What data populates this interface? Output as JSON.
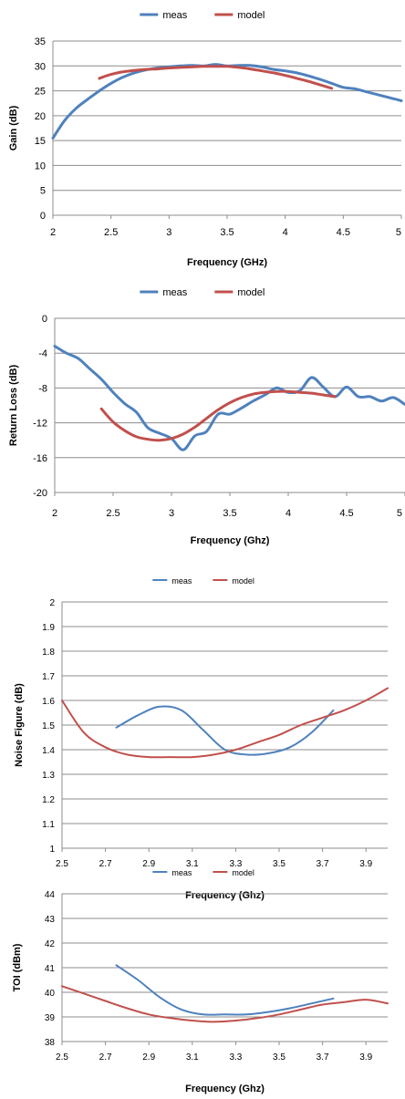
{
  "chart_data": [
    {
      "type": "line",
      "xlabel": "Frequency (GHz)",
      "ylabel": "Gain (dB)",
      "xlim": [
        2,
        5
      ],
      "ylim": [
        0,
        35
      ],
      "xticks": [
        "2",
        "2.5",
        "3",
        "3.5",
        "4",
        "4.5",
        "5"
      ],
      "yticks": [
        "0",
        "5",
        "10",
        "15",
        "20",
        "25",
        "30",
        "35"
      ],
      "grid": "horizontal",
      "legend": "top-center",
      "series": [
        {
          "name": "meas",
          "color": "#4F81BD",
          "x": [
            2.0,
            2.1,
            2.2,
            2.3,
            2.4,
            2.5,
            2.6,
            2.7,
            2.8,
            2.9,
            3.0,
            3.1,
            3.2,
            3.3,
            3.4,
            3.5,
            3.6,
            3.7,
            3.8,
            3.9,
            4.0,
            4.1,
            4.2,
            4.3,
            4.4,
            4.5,
            4.6,
            4.7,
            4.8,
            4.9,
            5.0
          ],
          "y": [
            15.5,
            19,
            21.5,
            23.3,
            25,
            26.5,
            27.7,
            28.6,
            29.2,
            29.6,
            29.8,
            30.0,
            30.1,
            30.0,
            30.3,
            30.0,
            30.1,
            30.1,
            29.8,
            29.3,
            29.0,
            28.6,
            28.0,
            27.3,
            26.5,
            25.7,
            25.4,
            24.8,
            24.2,
            23.6,
            23.0
          ]
        },
        {
          "name": "model",
          "color": "#C0504D",
          "x": [
            2.4,
            2.5,
            2.6,
            2.7,
            2.8,
            2.9,
            3.0,
            3.1,
            3.2,
            3.3,
            3.4,
            3.5,
            3.6,
            3.7,
            3.8,
            3.9,
            4.0,
            4.1,
            4.2,
            4.3,
            4.4
          ],
          "y": [
            27.5,
            28.3,
            28.8,
            29.1,
            29.3,
            29.4,
            29.6,
            29.7,
            29.8,
            29.9,
            29.9,
            29.9,
            29.7,
            29.4,
            29.0,
            28.6,
            28.1,
            27.5,
            26.9,
            26.2,
            25.5
          ]
        }
      ]
    },
    {
      "type": "line",
      "xlabel": "Frequency (Ghz)",
      "ylabel": "Return Loss (dB)",
      "xlim": [
        2,
        5
      ],
      "ylim": [
        -20,
        0
      ],
      "xticks": [
        "2",
        "2.5",
        "3",
        "3.5",
        "4",
        "4.5",
        "5"
      ],
      "yticks": [
        "-20",
        "-16",
        "-12",
        "-8",
        "-4",
        "0"
      ],
      "grid": "horizontal",
      "legend": "top-center",
      "series": [
        {
          "name": "meas",
          "color": "#4F81BD",
          "x": [
            2.0,
            2.1,
            2.2,
            2.3,
            2.4,
            2.5,
            2.6,
            2.7,
            2.8,
            2.9,
            3.0,
            3.1,
            3.2,
            3.3,
            3.4,
            3.5,
            3.6,
            3.7,
            3.8,
            3.9,
            4.0,
            4.1,
            4.2,
            4.3,
            4.4,
            4.5,
            4.6,
            4.7,
            4.8,
            4.9,
            5.0
          ],
          "y": [
            -3.2,
            -4.0,
            -4.6,
            -5.8,
            -7.0,
            -8.5,
            -9.8,
            -10.8,
            -12.6,
            -13.2,
            -13.8,
            -15.1,
            -13.5,
            -13.0,
            -11.0,
            -11.0,
            -10.3,
            -9.5,
            -8.8,
            -8.0,
            -8.5,
            -8.3,
            -6.8,
            -7.9,
            -9.0,
            -7.9,
            -9.0,
            -9.0,
            -9.5,
            -9.1,
            -9.9
          ]
        },
        {
          "name": "model",
          "color": "#C0504D",
          "x": [
            2.4,
            2.5,
            2.6,
            2.7,
            2.8,
            2.9,
            3.0,
            3.1,
            3.2,
            3.3,
            3.4,
            3.5,
            3.6,
            3.7,
            3.8,
            3.9,
            4.0,
            4.1,
            4.2,
            4.3,
            4.4
          ],
          "y": [
            -10.4,
            -11.9,
            -12.9,
            -13.6,
            -13.9,
            -14.0,
            -13.8,
            -13.3,
            -12.5,
            -11.5,
            -10.5,
            -9.7,
            -9.1,
            -8.7,
            -8.5,
            -8.4,
            -8.4,
            -8.5,
            -8.6,
            -8.8,
            -9.0
          ]
        }
      ]
    },
    {
      "type": "line",
      "xlabel": "Frequency (Ghz)",
      "ylabel": "Noise Figure (dB)",
      "xlim": [
        2.5,
        4.0
      ],
      "ylim": [
        1,
        2
      ],
      "xticks": [
        "2.5",
        "2.7",
        "2.9",
        "3.1",
        "3.3",
        "3.5",
        "3.7",
        "3.9"
      ],
      "yticks": [
        "1",
        "1.1",
        "1.2",
        "1.3",
        "1.4",
        "1.5",
        "1.6",
        "1.7",
        "1.8",
        "1.9",
        "2"
      ],
      "grid": "horizontal",
      "legend": "top-center",
      "series": [
        {
          "name": "meas",
          "color": "#4F81BD",
          "x": [
            2.75,
            2.85,
            2.95,
            3.05,
            3.15,
            3.25,
            3.35,
            3.45,
            3.55,
            3.65,
            3.75
          ],
          "y": [
            1.49,
            1.54,
            1.575,
            1.56,
            1.48,
            1.4,
            1.38,
            1.385,
            1.41,
            1.47,
            1.56
          ]
        },
        {
          "name": "model",
          "color": "#C0504D",
          "x": [
            2.5,
            2.6,
            2.7,
            2.8,
            2.9,
            3.0,
            3.1,
            3.2,
            3.3,
            3.4,
            3.5,
            3.6,
            3.7,
            3.8,
            3.9,
            4.0
          ],
          "y": [
            1.6,
            1.47,
            1.41,
            1.38,
            1.37,
            1.37,
            1.37,
            1.38,
            1.4,
            1.43,
            1.46,
            1.5,
            1.53,
            1.56,
            1.6,
            1.65
          ]
        }
      ]
    },
    {
      "type": "line",
      "xlabel": "Frequency (Ghz)",
      "ylabel": "TOI (dBm)",
      "xlim": [
        2.5,
        4.0
      ],
      "ylim": [
        38,
        44
      ],
      "xticks": [
        "2.5",
        "2.7",
        "2.9",
        "3.1",
        "3.3",
        "3.5",
        "3.7",
        "3.9"
      ],
      "yticks": [
        "38",
        "39",
        "40",
        "41",
        "42",
        "43",
        "44"
      ],
      "grid": "horizontal",
      "legend": "top-center",
      "series": [
        {
          "name": "meas",
          "color": "#4F81BD",
          "x": [
            2.75,
            2.85,
            2.95,
            3.05,
            3.15,
            3.25,
            3.35,
            3.45,
            3.55,
            3.65,
            3.75
          ],
          "y": [
            41.1,
            40.5,
            39.8,
            39.3,
            39.1,
            39.1,
            39.1,
            39.2,
            39.35,
            39.55,
            39.75
          ]
        },
        {
          "name": "model",
          "color": "#C0504D",
          "x": [
            2.5,
            2.6,
            2.7,
            2.8,
            2.9,
            3.0,
            3.1,
            3.2,
            3.3,
            3.4,
            3.5,
            3.6,
            3.7,
            3.8,
            3.9,
            4.0
          ],
          "y": [
            40.25,
            39.95,
            39.65,
            39.35,
            39.1,
            38.95,
            38.85,
            38.8,
            38.85,
            38.95,
            39.1,
            39.3,
            39.5,
            39.6,
            39.7,
            39.55
          ]
        }
      ]
    }
  ]
}
